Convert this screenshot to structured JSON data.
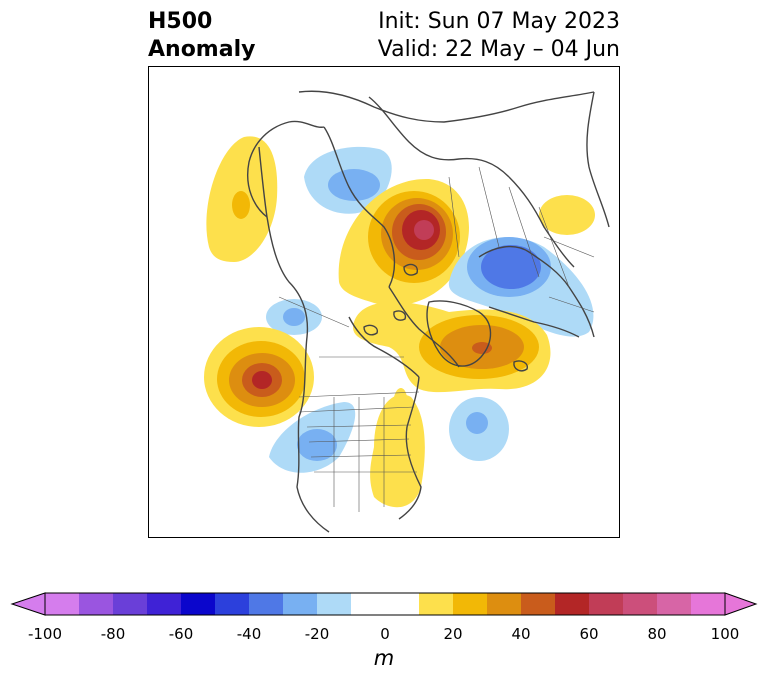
{
  "title": {
    "line1": "H500",
    "line2": "Anomaly",
    "init": "Init: Sun 07 May 2023",
    "valid": "Valid: 22 May – 04 Jun"
  },
  "colorbar": {
    "unit": "m",
    "ticks": [
      "-100",
      "-80",
      "-60",
      "-40",
      "-20",
      "0",
      "20",
      "40",
      "60",
      "80",
      "100"
    ],
    "levels": [
      -100,
      -90,
      -80,
      -70,
      -60,
      -50,
      -40,
      -30,
      -20,
      -10,
      10,
      20,
      30,
      40,
      50,
      60,
      70,
      80,
      90,
      100
    ],
    "colors": [
      "#d57ded",
      "#9a55e0",
      "#6a3fd8",
      "#3f22d6",
      "#0b06cc",
      "#2c40dc",
      "#4f78e6",
      "#78b0f2",
      "#aedaf7",
      "#ffffff",
      "#fde04c",
      "#f2b806",
      "#dd8e10",
      "#c95c1c",
      "#b32626",
      "#c13d57",
      "#cc4f7b",
      "#d765a6",
      "#e676d9"
    ],
    "extend_low_color": "#d57ded",
    "extend_high_color": "#e676d9"
  },
  "map": {
    "projection": "polar stereographic, North America / North Pole",
    "anomalies": [
      {
        "region": "Alaska/Bering coast",
        "sign": "positive",
        "peak_m": 20
      },
      {
        "region": "Northeast Pacific",
        "sign": "positive",
        "peak_m": 60
      },
      {
        "region": "Northern Siberia / Taymyr",
        "sign": "positive",
        "peak_m": 60
      },
      {
        "region": "Greenland / Baffin Bay",
        "sign": "positive",
        "peak_m": 40
      },
      {
        "region": "Eastern United States",
        "sign": "positive",
        "peak_m": 20
      },
      {
        "region": "Chukotka / East Siberia",
        "sign": "negative",
        "peak_m": -20
      },
      {
        "region": "Scandinavia / Northern Europe",
        "sign": "negative",
        "peak_m": -40
      },
      {
        "region": "Western United States",
        "sign": "negative",
        "peak_m": -20
      },
      {
        "region": "North Atlantic",
        "sign": "negative",
        "peak_m": -20
      },
      {
        "region": "Gulf of Alaska west",
        "sign": "negative",
        "peak_m": -20
      }
    ]
  }
}
